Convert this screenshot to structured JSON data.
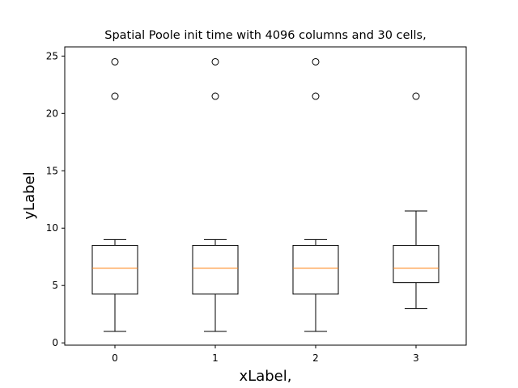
{
  "chart_data": {
    "type": "box",
    "title": "Spatial Poole init time with 4096 columns and 30 cells,",
    "xlabel": "xLabel,",
    "ylabel": "yLabel",
    "categories": [
      "0",
      "1",
      "2",
      "3"
    ],
    "xlim": [
      -0.5,
      3.5
    ],
    "ylim": [
      -0.2,
      25.8
    ],
    "yticks": [
      0,
      5,
      10,
      15,
      20,
      25
    ],
    "grid": false,
    "boxes": [
      {
        "category": "0",
        "whisker_low": 1,
        "q1": 4.25,
        "median": 6.5,
        "q3": 8.5,
        "whisker_high": 9,
        "outliers": [
          21.5,
          24.5
        ]
      },
      {
        "category": "1",
        "whisker_low": 1,
        "q1": 4.25,
        "median": 6.5,
        "q3": 8.5,
        "whisker_high": 9,
        "outliers": [
          21.5,
          24.5
        ]
      },
      {
        "category": "2",
        "whisker_low": 1,
        "q1": 4.25,
        "median": 6.5,
        "q3": 8.5,
        "whisker_high": 9,
        "outliers": [
          21.5,
          24.5
        ]
      },
      {
        "category": "3",
        "whisker_low": 3,
        "q1": 5.25,
        "median": 6.5,
        "q3": 8.5,
        "whisker_high": 11.5,
        "outliers": [
          21.5
        ]
      }
    ],
    "colors": {
      "box": "#000000",
      "median": "#ff7f0e",
      "outlier": "#000000"
    }
  }
}
